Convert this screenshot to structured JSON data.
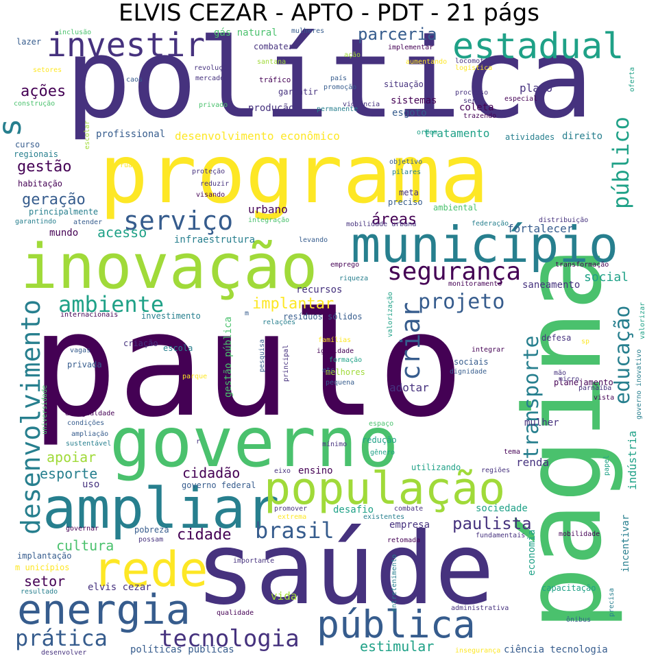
{
  "title": "ELVIS CEZAR - APTO - PDT - 21 págs",
  "palette": {
    "d1": "#440154",
    "d2": "#46327e",
    "d3": "#365c8d",
    "d4": "#277f8e",
    "d5": "#1fa187",
    "d6": "#4ac16d",
    "d7": "#a0da39",
    "d8": "#fde725"
  },
  "words": [
    {
      "text": "política",
      "color": "d2"
    },
    {
      "text": "paulo",
      "color": "d1"
    },
    {
      "text": "programa",
      "color": "d8"
    },
    {
      "text": "página",
      "color": "d6"
    },
    {
      "text": "saúde",
      "color": "d2"
    },
    {
      "text": "governo",
      "color": "d6"
    },
    {
      "text": "inovação",
      "color": "d7"
    },
    {
      "text": "município",
      "color": "d4"
    },
    {
      "text": "ampliar",
      "color": "d4"
    },
    {
      "text": "população",
      "color": "d7"
    },
    {
      "text": "energia",
      "color": "d3"
    },
    {
      "text": "rede",
      "color": "d8"
    },
    {
      "text": "pública",
      "color": "d3"
    },
    {
      "text": "investir",
      "color": "d2"
    },
    {
      "text": "estadual",
      "color": "d5"
    },
    {
      "text": "desenvolvimento",
      "color": "d4"
    },
    {
      "text": "serviço",
      "color": "d3"
    },
    {
      "text": "segurança",
      "color": "d1"
    },
    {
      "text": "ambiente",
      "color": "d5"
    },
    {
      "text": "tecnologia",
      "color": "d2"
    },
    {
      "text": "prática",
      "color": "d3"
    },
    {
      "text": "brasil",
      "color": "d3"
    },
    {
      "text": "projeto",
      "color": "d3"
    },
    {
      "text": "público",
      "color": "d5"
    },
    {
      "text": "educação",
      "color": "d4"
    },
    {
      "text": "transporte",
      "color": "d4"
    },
    {
      "text": "criar",
      "color": "d3"
    },
    {
      "text": "paulista",
      "color": "d2"
    },
    {
      "text": "estimular",
      "color": "d5"
    },
    {
      "text": "s",
      "color": "d4"
    },
    {
      "text": "parceria",
      "color": "d3"
    },
    {
      "text": "ações",
      "color": "d1"
    },
    {
      "text": "gestão",
      "color": "d1"
    },
    {
      "text": "geração",
      "color": "d3"
    },
    {
      "text": "áreas",
      "color": "d1"
    },
    {
      "text": "implantar",
      "color": "d8"
    },
    {
      "text": "social",
      "color": "d5"
    },
    {
      "text": "cidade",
      "color": "d1"
    },
    {
      "text": "cultura",
      "color": "d6"
    },
    {
      "text": "setor",
      "color": "d1"
    },
    {
      "text": "apoiar",
      "color": "d7"
    },
    {
      "text": "esporte",
      "color": "d4"
    },
    {
      "text": "cidadão",
      "color": "d1"
    },
    {
      "text": "acesso",
      "color": "d5"
    },
    {
      "text": "urbano",
      "color": "d1"
    },
    {
      "text": "fortalecer",
      "color": "d3"
    },
    {
      "text": "plano",
      "color": "d2"
    },
    {
      "text": "desenvolvimento econômico",
      "color": "d8"
    },
    {
      "text": "tratamento",
      "color": "d5"
    },
    {
      "text": "renda",
      "color": "d2"
    },
    {
      "text": "mundo",
      "color": "d1"
    },
    {
      "text": "adotar",
      "color": "d2"
    },
    {
      "text": "indústria",
      "color": "d5"
    },
    {
      "text": "incentivar",
      "color": "d4"
    },
    {
      "text": "economia",
      "color": "d5"
    },
    {
      "text": "empresa",
      "color": "d2"
    },
    {
      "text": "desafio",
      "color": "d5"
    },
    {
      "text": "ensino",
      "color": "d1"
    },
    {
      "text": "vida",
      "color": "d7"
    },
    {
      "text": "sociedade",
      "color": "d5"
    },
    {
      "text": "uso",
      "color": "d2"
    },
    {
      "text": "gestão pública",
      "color": "d6"
    },
    {
      "text": "mulher",
      "color": "d2"
    },
    {
      "text": "saneamento",
      "color": "d2"
    },
    {
      "text": "infraestrutura",
      "color": "d4"
    },
    {
      "text": "profissional",
      "color": "d3"
    },
    {
      "text": "produção",
      "color": "d2"
    },
    {
      "text": "sistemas",
      "color": "d1"
    },
    {
      "text": "esgoto",
      "color": "d3"
    },
    {
      "text": "coleta",
      "color": "d1"
    },
    {
      "text": "gás natural",
      "color": "d6"
    },
    {
      "text": "políticas públicas",
      "color": "d3"
    },
    {
      "text": "ciência tecnologia",
      "color": "d3"
    },
    {
      "text": "elvis cezar",
      "color": "d2"
    },
    {
      "text": "investimento",
      "color": "d4"
    },
    {
      "text": "recursos",
      "color": "d2"
    },
    {
      "text": "resíduos sólidos",
      "color": "d3"
    },
    {
      "text": "pobreza",
      "color": "d3"
    },
    {
      "text": "governo federal",
      "color": "d3"
    },
    {
      "text": "capacitação",
      "color": "d5"
    },
    {
      "text": "mobilidade urbana",
      "color": "d2"
    },
    {
      "text": "levando",
      "color": "d3"
    },
    {
      "text": "integração",
      "color": "d6"
    },
    {
      "text": "meta",
      "color": "d2"
    },
    {
      "text": "preciso",
      "color": "d3"
    },
    {
      "text": "ambiental",
      "color": "d6"
    },
    {
      "text": "situação",
      "color": "d2"
    },
    {
      "text": "garantir",
      "color": "d2"
    },
    {
      "text": "combater",
      "color": "d2"
    },
    {
      "text": "tráfico",
      "color": "d1"
    },
    {
      "text": "habitação",
      "color": "d1"
    },
    {
      "text": "principalmente",
      "color": "d4"
    },
    {
      "text": "mobilidade",
      "color": "d1"
    },
    {
      "text": "planejamento",
      "color": "d1"
    },
    {
      "text": "fundamentais",
      "color": "d2"
    },
    {
      "text": "qualidade",
      "color": "d1"
    },
    {
      "text": "desenvolver",
      "color": "d2"
    },
    {
      "text": "implantação",
      "color": "d3"
    },
    {
      "text": "retomada",
      "color": "d1"
    },
    {
      "text": "combate",
      "color": "d2"
    },
    {
      "text": "promover",
      "color": "d2"
    },
    {
      "text": "redução",
      "color": "d5"
    },
    {
      "text": "utilizando",
      "color": "d5"
    },
    {
      "text": "eixo",
      "color": "d2"
    },
    {
      "text": "criação",
      "color": "d2"
    },
    {
      "text": "escola",
      "color": "d4"
    },
    {
      "text": "privada",
      "color": "d3"
    },
    {
      "text": "igualdade",
      "color": "d1"
    },
    {
      "text": "melhores",
      "color": "d7"
    },
    {
      "text": "pequena",
      "color": "d3"
    },
    {
      "text": "sociais",
      "color": "d3"
    },
    {
      "text": "integrar",
      "color": "d1"
    },
    {
      "text": "defesa",
      "color": "d2"
    },
    {
      "text": "tema",
      "color": "d1"
    },
    {
      "text": "especial",
      "color": "d1"
    },
    {
      "text": "processo",
      "color": "d2"
    },
    {
      "text": "direito",
      "color": "d4"
    },
    {
      "text": "atividades",
      "color": "d4"
    },
    {
      "text": "ordem",
      "color": "d5"
    },
    {
      "text": "lazer",
      "color": "d3"
    },
    {
      "text": "setores",
      "color": "d8"
    },
    {
      "text": "construção",
      "color": "d6"
    },
    {
      "text": "curso",
      "color": "d3"
    },
    {
      "text": "regionais",
      "color": "d4"
    },
    {
      "text": "garantindo",
      "color": "d4"
    },
    {
      "text": "atender",
      "color": "d3"
    },
    {
      "text": "inclusão",
      "color": "d6"
    },
    {
      "text": "mulheres",
      "color": "d3"
    },
    {
      "text": "ação",
      "color": "d7"
    },
    {
      "text": "santana",
      "color": "d7"
    },
    {
      "text": "revolução",
      "color": "d2"
    },
    {
      "text": "mercado",
      "color": "d2"
    },
    {
      "text": "privado",
      "color": "d6"
    },
    {
      "text": "caos",
      "color": "d3"
    },
    {
      "text": "implementar",
      "color": "d1"
    },
    {
      "text": "aumentando",
      "color": "d8"
    },
    {
      "text": "locomotiva",
      "color": "d2"
    },
    {
      "text": "logística",
      "color": "d8"
    },
    {
      "text": "país",
      "color": "d3"
    },
    {
      "text": "promoção",
      "color": "d3"
    },
    {
      "text": "violência",
      "color": "d2"
    },
    {
      "text": "permanente",
      "color": "d4"
    },
    {
      "text": "serem",
      "color": "d2"
    },
    {
      "text": "trazendo",
      "color": "d1"
    },
    {
      "text": "oferta",
      "color": "d5"
    },
    {
      "text": "rua",
      "color": "d8"
    },
    {
      "text": "proteção",
      "color": "d2"
    },
    {
      "text": "reduzir",
      "color": "d2"
    },
    {
      "text": "visando",
      "color": "d1"
    },
    {
      "text": "objetivo",
      "color": "d3"
    },
    {
      "text": "pilares",
      "color": "d4"
    },
    {
      "text": "federação",
      "color": "d4"
    },
    {
      "text": "distribuição",
      "color": "d2"
    },
    {
      "text": "emprego",
      "color": "d1"
    },
    {
      "text": "riqueza",
      "color": "d4"
    },
    {
      "text": "transformação",
      "color": "d1"
    },
    {
      "text": "monitoramento",
      "color": "d1"
    },
    {
      "text": "internacionais",
      "color": "d1"
    },
    {
      "text": "m",
      "color": "d3"
    },
    {
      "text": "relações",
      "color": "d4"
    },
    {
      "text": "valorização",
      "color": "d5"
    },
    {
      "text": "valorizar",
      "color": "d5"
    },
    {
      "text": "governo inovativo",
      "color": "d4"
    },
    {
      "text": "escolar",
      "color": "d7"
    },
    {
      "text": "vagas",
      "color": "d3"
    },
    {
      "text": "pesquisa",
      "color": "d3"
    },
    {
      "text": "principal",
      "color": "d2"
    },
    {
      "text": "etc",
      "color": "d3"
    },
    {
      "text": "famílias",
      "color": "d8"
    },
    {
      "text": "formação",
      "color": "d5"
    },
    {
      "text": "dignidade",
      "color": "d3"
    },
    {
      "text": "sp",
      "color": "d8"
    },
    {
      "text": "mão",
      "color": "d2"
    },
    {
      "text": "micro",
      "color": "d2"
    },
    {
      "text": "parnaíba",
      "color": "d2"
    },
    {
      "text": "vista",
      "color": "d1"
    },
    {
      "text": "parque",
      "color": "d8"
    },
    {
      "text": "universidade",
      "color": "d6"
    },
    {
      "text": "desigualdade",
      "color": "d1"
    },
    {
      "text": "condições",
      "color": "d3"
    },
    {
      "text": "ampliação",
      "color": "d3"
    },
    {
      "text": "sustentável",
      "color": "d4"
    },
    {
      "text": "r",
      "color": "d2"
    },
    {
      "text": "espaço",
      "color": "d6"
    },
    {
      "text": "mínimo",
      "color": "d2"
    },
    {
      "text": "gênero",
      "color": "d5"
    },
    {
      "text": "regiões",
      "color": "d2"
    },
    {
      "text": "papel",
      "color": "d5"
    },
    {
      "text": "extrema",
      "color": "d8"
    },
    {
      "text": "existentes",
      "color": "d4"
    },
    {
      "text": "governar",
      "color": "d1"
    },
    {
      "text": "possam",
      "color": "d2"
    },
    {
      "text": "m unicípios",
      "color": "d8"
    },
    {
      "text": "importante",
      "color": "d2"
    },
    {
      "text": "entretenimento",
      "color": "d4"
    },
    {
      "text": "resultado",
      "color": "d4"
    },
    {
      "text": "precisa",
      "color": "d4"
    },
    {
      "text": "ônibus",
      "color": "d3"
    },
    {
      "text": "administrativa",
      "color": "d2"
    },
    {
      "text": "insegurança",
      "color": "d8"
    }
  ]
}
